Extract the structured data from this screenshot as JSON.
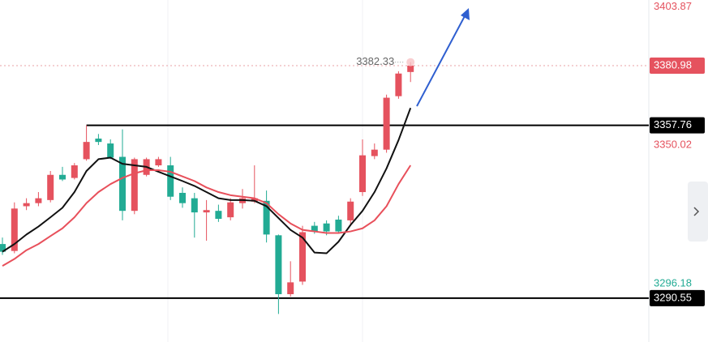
{
  "chart_data": {
    "type": "candlestick",
    "ylim": [
      3273.5,
      3406.5
    ],
    "up_color": "#e5525e",
    "down_color": "#22ab94",
    "open": [
      3311.6,
      3308.9,
      3326.3,
      3327.5,
      3328.7,
      3338.5,
      3337.3,
      3344.6,
      3352.6,
      3350.7,
      3345.5,
      3324.5,
      3338.5,
      3342.2,
      3342.2,
      3331.5,
      3329.4,
      3323.9,
      3324.5,
      3322.0,
      3327.5,
      3328.1,
      3328.4,
      3315.0,
      3292.1,
      3297.0,
      3318.7,
      3319.6,
      3321.1,
      3320.8,
      3331.8,
      3345.8,
      3348.3,
      3369.1,
      3378.5
    ],
    "high": [
      3314.1,
      3327.8,
      3329.4,
      3331.8,
      3340.0,
      3341.6,
      3343.1,
      3357.76,
      3354.4,
      3352.3,
      3356.2,
      3345.2,
      3345.2,
      3345.5,
      3345.5,
      3333.6,
      3331.5,
      3328.7,
      3326.9,
      3329.4,
      3333.0,
      3342.2,
      3332.4,
      3315.3,
      3304.9,
      3318.7,
      3320.2,
      3320.8,
      3322.6,
      3329.4,
      3352.3,
      3350.7,
      3369.7,
      3378.8,
      3382.33
    ],
    "low": [
      3307.4,
      3308.0,
      3324.8,
      3326.3,
      3327.8,
      3336.1,
      3336.7,
      3344.0,
      3350.1,
      3344.6,
      3320.8,
      3323.2,
      3337.9,
      3341.6,
      3328.7,
      3325.7,
      3314.1,
      3312.9,
      3320.2,
      3320.8,
      3325.4,
      3327.5,
      3312.2,
      3284.4,
      3291.2,
      3295.7,
      3315.6,
      3315.0,
      3315.6,
      3318.7,
      3330.3,
      3344.6,
      3347.1,
      3368.1,
      3374.6
    ],
    "close": [
      3308.6,
      3325.4,
      3327.5,
      3329.4,
      3338.5,
      3336.7,
      3342.2,
      3351.3,
      3351.3,
      3345.2,
      3324.5,
      3344.6,
      3344.6,
      3344.6,
      3330.0,
      3327.5,
      3323.9,
      3324.8,
      3321.4,
      3327.8,
      3329.4,
      3329.4,
      3315.3,
      3292.1,
      3296.7,
      3316.2,
      3316.5,
      3316.5,
      3316.5,
      3328.1,
      3346.1,
      3348.3,
      3368.5,
      3377.9,
      3380.98
    ],
    "lines": [
      {
        "color": "#111111",
        "values": [
          3308.6,
          3311.6,
          3315.3,
          3318.4,
          3322.0,
          3325.7,
          3331.8,
          3340.0,
          3344.6,
          3345.2,
          3342.8,
          3342.2,
          3341.6,
          3339.7,
          3337.9,
          3336.1,
          3334.2,
          3331.8,
          3329.4,
          3328.7,
          3328.7,
          3328.4,
          3326.3,
          3321.7,
          3317.1,
          3314.1,
          3308.3,
          3308.0,
          3312.5,
          3319.0,
          3324.5,
          3331.8,
          3341.0,
          3352.0,
          3364.5
        ]
      },
      {
        "color": "#e8505b",
        "values": [
          3303.1,
          3305.8,
          3309.2,
          3311.6,
          3314.7,
          3317.7,
          3322.0,
          3327.5,
          3331.8,
          3334.9,
          3337.3,
          3339.1,
          3340.3,
          3340.3,
          3339.7,
          3337.9,
          3336.1,
          3333.6,
          3331.8,
          3330.6,
          3330.0,
          3329.4,
          3327.5,
          3323.2,
          3319.6,
          3317.1,
          3316.5,
          3315.9,
          3315.9,
          3316.5,
          3317.7,
          3320.8,
          3326.3,
          3334.9,
          3342.2
        ]
      }
    ],
    "high_marker": 3382.33,
    "price_labels": [
      {
        "value": 3403.87,
        "color": "#e5525e"
      },
      {
        "value": 3380.98,
        "color": "#e5525e",
        "boxed": true,
        "line": "dotted"
      },
      {
        "value": 3357.76,
        "color": "#000000",
        "boxed": true,
        "line": "solid",
        "from_candle": 7
      },
      {
        "value": 3350.02,
        "color": "#e5525e"
      },
      {
        "value": 3296.18,
        "color": "#22ab94"
      },
      {
        "value": 3290.55,
        "color": "#000000",
        "boxed": true,
        "line": "solid"
      }
    ]
  }
}
